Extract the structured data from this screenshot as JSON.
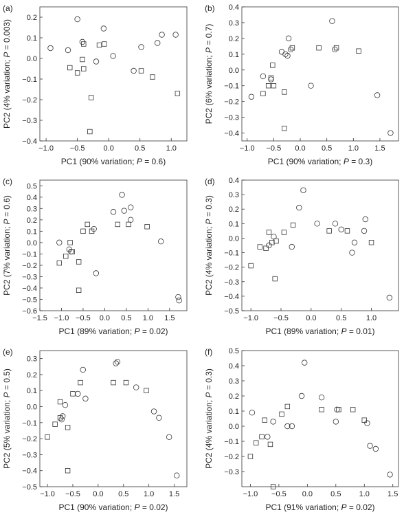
{
  "chart_data": [
    {
      "type": "scatter",
      "panel_label": "(a)",
      "xlabel": "PC1 (90% variation; ",
      "xlabel_p": "P",
      "xlabel_tail": " = 0.6)",
      "ylabel": "PC2 (4% variation; ",
      "ylabel_p": "P",
      "ylabel_tail": " = 0.003)",
      "xlim": [
        -1.1,
        1.25
      ],
      "ylim": [
        -0.4,
        0.25
      ],
      "xticks": [
        -1,
        -0.5,
        0,
        0.5,
        1
      ],
      "xtick_labels": [
        "−1.0",
        "−0.5",
        "0.0",
        "0.5",
        "1.0"
      ],
      "yticks": [
        -0.4,
        -0.3,
        -0.2,
        -0.1,
        0,
        0.1,
        0.2
      ],
      "ytick_labels": [
        "−0.4",
        "−0.3",
        "−0.2",
        "−0.1",
        "0.0",
        "0.1",
        "0.2"
      ],
      "series": [
        {
          "marker": "circle",
          "points": [
            [
              -0.93,
              0.05
            ],
            [
              -0.65,
              0.04
            ],
            [
              -0.5,
              0.19
            ],
            [
              -0.42,
              0.08
            ],
            [
              -0.2,
              -0.015
            ],
            [
              -0.08,
              0.145
            ],
            [
              0.07,
              0.012
            ],
            [
              0.52,
              0.055
            ],
            [
              0.78,
              0.075
            ],
            [
              0.85,
              0.115
            ],
            [
              1.07,
              0.115
            ],
            [
              0.4,
              -0.06
            ]
          ]
        },
        {
          "marker": "square",
          "points": [
            [
              -0.62,
              -0.045
            ],
            [
              -0.5,
              -0.07
            ],
            [
              -0.4,
              0.07
            ],
            [
              -0.4,
              -0.05
            ],
            [
              -0.28,
              -0.19
            ],
            [
              -0.3,
              -0.355
            ],
            [
              -0.15,
              0.065
            ],
            [
              -0.07,
              0.07
            ],
            [
              -0.42,
              -0.005
            ],
            [
              0.52,
              -0.06
            ],
            [
              0.7,
              -0.09
            ],
            [
              1.1,
              -0.17
            ]
          ]
        }
      ]
    },
    {
      "type": "scatter",
      "panel_label": "(b)",
      "xlabel": "PC1 (90% variation; ",
      "xlabel_p": "P",
      "xlabel_tail": " = 0.3)",
      "ylabel": "PC2 (6% variation; ",
      "ylabel_p": "P",
      "ylabel_tail": " = 0.7)",
      "xlim": [
        -1.1,
        1.85
      ],
      "ylim": [
        -0.45,
        0.4
      ],
      "xticks": [
        -1,
        -0.5,
        0,
        0.5,
        1,
        1.5
      ],
      "xtick_labels": [
        "−1.0",
        "−0.5",
        "0.0",
        "0.5",
        "1.0",
        "1.5"
      ],
      "yticks": [
        -0.4,
        -0.3,
        -0.2,
        -0.1,
        0,
        0.1,
        0.2,
        0.3,
        0.4
      ],
      "ytick_labels": [
        "−0.4",
        "−0.3",
        "−0.2",
        "−0.1",
        "0.0",
        "0.1",
        "0.2",
        "0.3",
        "0.4"
      ],
      "series": [
        {
          "marker": "circle",
          "points": [
            [
              -0.92,
              -0.17
            ],
            [
              -0.7,
              -0.04
            ],
            [
              -0.55,
              -0.06
            ],
            [
              -0.35,
              0.115
            ],
            [
              -0.28,
              0.1
            ],
            [
              -0.24,
              0.09
            ],
            [
              -0.22,
              0.2
            ],
            [
              -0.18,
              0.13
            ],
            [
              0.2,
              -0.1
            ],
            [
              0.6,
              0.31
            ],
            [
              0.65,
              0.13
            ],
            [
              1.45,
              -0.16
            ],
            [
              1.7,
              -0.4
            ]
          ]
        },
        {
          "marker": "square",
          "points": [
            [
              -0.7,
              -0.15
            ],
            [
              -0.6,
              -0.1
            ],
            [
              -0.55,
              -0.05
            ],
            [
              -0.52,
              0.03
            ],
            [
              -0.5,
              -0.1
            ],
            [
              -0.3,
              -0.14
            ],
            [
              -0.3,
              -0.37
            ],
            [
              -0.15,
              0.14
            ],
            [
              0.35,
              0.14
            ],
            [
              0.68,
              0.14
            ],
            [
              1.1,
              0.12
            ]
          ]
        }
      ]
    },
    {
      "type": "scatter",
      "panel_label": "(c)",
      "xlabel": "PC1 (89% variation; ",
      "xlabel_p": "P",
      "xlabel_tail": " = 0.02)",
      "ylabel": "PC2 (7% variation; ",
      "ylabel_p": "P",
      "ylabel_tail": " = 0.6)",
      "xlim": [
        -1.5,
        1.9
      ],
      "ylim": [
        -0.6,
        0.55
      ],
      "xticks": [
        -1.5,
        -1,
        -0.5,
        0,
        0.5,
        1,
        1.5
      ],
      "xtick_labels": [
        "−1.5",
        "−1.0",
        "−0.5",
        "0.0",
        "0.5",
        "1.0",
        "1.5"
      ],
      "yticks": [
        -0.6,
        -0.5,
        -0.4,
        -0.3,
        -0.2,
        -0.1,
        0,
        0.1,
        0.2,
        0.3,
        0.4,
        0.5
      ],
      "ytick_labels": [
        "−0.6",
        "−0.5",
        "−0.4",
        "−0.3",
        "−0.2",
        "−0.1",
        "0.0",
        "0.1",
        "0.2",
        "0.3",
        "0.4",
        "0.5"
      ],
      "series": [
        {
          "marker": "circle",
          "points": [
            [
              -1.05,
              0.0
            ],
            [
              -0.82,
              -0.06
            ],
            [
              -0.78,
              -0.08
            ],
            [
              -0.25,
              0.12
            ],
            [
              -0.2,
              -0.27
            ],
            [
              0.2,
              0.27
            ],
            [
              0.4,
              0.42
            ],
            [
              0.45,
              0.28
            ],
            [
              0.6,
              0.31
            ],
            [
              0.6,
              0.2
            ],
            [
              1.3,
              0.01
            ],
            [
              1.7,
              -0.48
            ],
            [
              1.72,
              -0.51
            ]
          ]
        },
        {
          "marker": "square",
          "points": [
            [
              -1.05,
              -0.18
            ],
            [
              -0.9,
              -0.12
            ],
            [
              -0.8,
              0.0
            ],
            [
              -0.75,
              -0.08
            ],
            [
              -0.6,
              -0.17
            ],
            [
              -0.6,
              -0.42
            ],
            [
              -0.5,
              0.1
            ],
            [
              -0.4,
              0.16
            ],
            [
              -0.3,
              0.1
            ],
            [
              0.3,
              0.16
            ],
            [
              0.55,
              0.16
            ],
            [
              0.98,
              0.14
            ]
          ]
        }
      ]
    },
    {
      "type": "scatter",
      "panel_label": "(d)",
      "xlabel": "PC1 (89% variation; ",
      "xlabel_p": "P",
      "xlabel_tail": " = 0.01)",
      "ylabel": "PC2 (4% variation; ",
      "ylabel_p": "P",
      "ylabel_tail": " = 0.3)",
      "xlim": [
        -1.15,
        1.45
      ],
      "ylim": [
        -0.5,
        0.4
      ],
      "xticks": [
        -1,
        -0.5,
        0,
        0.5,
        1
      ],
      "xtick_labels": [
        "−1.0",
        "−0.5",
        "0.0",
        "0.5",
        "1.0"
      ],
      "yticks": [
        -0.5,
        -0.4,
        -0.3,
        -0.2,
        -0.1,
        0,
        0.1,
        0.2,
        0.3,
        0.4
      ],
      "ytick_labels": [
        "−0.5",
        "−0.4",
        "−0.3",
        "−0.2",
        "−0.1",
        "0.0",
        "0.1",
        "0.2",
        "0.3",
        "0.4"
      ],
      "series": [
        {
          "marker": "circle",
          "points": [
            [
              -0.7,
              -0.05
            ],
            [
              -0.62,
              0.01
            ],
            [
              -0.32,
              -0.06
            ],
            [
              -0.2,
              0.21
            ],
            [
              -0.13,
              0.33
            ],
            [
              0.1,
              0.1
            ],
            [
              0.4,
              0.1
            ],
            [
              0.5,
              0.06
            ],
            [
              0.68,
              -0.1
            ],
            [
              0.72,
              -0.03
            ],
            [
              0.9,
              0.13
            ],
            [
              0.88,
              0.05
            ],
            [
              1.3,
              -0.41
            ]
          ]
        },
        {
          "marker": "square",
          "points": [
            [
              -1.0,
              -0.19
            ],
            [
              -0.85,
              -0.06
            ],
            [
              -0.75,
              -0.07
            ],
            [
              -0.7,
              0.04
            ],
            [
              -0.65,
              -0.03
            ],
            [
              -0.6,
              -0.28
            ],
            [
              -0.58,
              -0.02
            ],
            [
              -0.45,
              0.04
            ],
            [
              -0.3,
              0.09
            ],
            [
              0.3,
              0.05
            ],
            [
              0.6,
              0.05
            ],
            [
              1.0,
              -0.03
            ]
          ]
        }
      ]
    },
    {
      "type": "scatter",
      "panel_label": "(e)",
      "xlabel": "PC1 (90% variation; ",
      "xlabel_p": "P",
      "xlabel_tail": " = 0.02)",
      "ylabel": "PC2 (5% variation; ",
      "ylabel_p": "P",
      "ylabel_tail": " = 0.5)",
      "xlim": [
        -1.15,
        1.75
      ],
      "ylim": [
        -0.5,
        0.35
      ],
      "xticks": [
        -1,
        -0.5,
        0,
        0.5,
        1,
        1.5
      ],
      "xtick_labels": [
        "−1.0",
        "−0.5",
        "0.0",
        "0.5",
        "1.0",
        "1.5"
      ],
      "yticks": [
        -0.5,
        -0.4,
        -0.3,
        -0.2,
        -0.1,
        0,
        0.1,
        0.2,
        0.3
      ],
      "ytick_labels": [
        "−0.5",
        "−0.4",
        "−0.3",
        "−0.2",
        "−0.1",
        "0.0",
        "0.1",
        "0.2",
        "0.3"
      ],
      "series": [
        {
          "marker": "circle",
          "points": [
            [
              -0.72,
              -0.08
            ],
            [
              -0.7,
              -0.06
            ],
            [
              -0.65,
              0.01
            ],
            [
              -0.4,
              0.08
            ],
            [
              -0.3,
              0.23
            ],
            [
              -0.25,
              0.05
            ],
            [
              0.35,
              0.27
            ],
            [
              0.38,
              0.28
            ],
            [
              0.75,
              0.12
            ],
            [
              1.1,
              -0.03
            ],
            [
              1.2,
              -0.07
            ],
            [
              1.4,
              -0.19
            ],
            [
              1.55,
              -0.43
            ]
          ]
        },
        {
          "marker": "square",
          "points": [
            [
              -1.0,
              -0.19
            ],
            [
              -0.85,
              -0.11
            ],
            [
              -0.75,
              -0.07
            ],
            [
              -0.75,
              0.03
            ],
            [
              -0.6,
              -0.13
            ],
            [
              -0.6,
              -0.4
            ],
            [
              -0.5,
              0.08
            ],
            [
              -0.35,
              0.15
            ],
            [
              0.3,
              0.15
            ],
            [
              0.55,
              0.15
            ],
            [
              0.95,
              0.1
            ]
          ]
        }
      ]
    },
    {
      "type": "scatter",
      "panel_label": "(f)",
      "xlabel": "PC1 (91% variation; ",
      "xlabel_p": "P",
      "xlabel_tail": " = 0.02)",
      "ylabel": "PC2 (4% variation; ",
      "ylabel_p": "P",
      "ylabel_tail": " = 0.3)",
      "xlim": [
        -1.15,
        1.6
      ],
      "ylim": [
        -0.4,
        0.5
      ],
      "xticks": [
        -1,
        -0.5,
        0,
        0.5,
        1,
        1.5
      ],
      "xtick_labels": [
        "−1.0",
        "−0.5",
        "0.0",
        "0.5",
        "1.0",
        "1.5"
      ],
      "yticks": [
        -0.3,
        -0.2,
        -0.1,
        0,
        0.1,
        0.2,
        0.3,
        0.4,
        0.5
      ],
      "ytick_labels": [
        "−0.3",
        "−0.2",
        "−0.1",
        "0.0",
        "0.1",
        "0.2",
        "0.3",
        "0.4",
        "0.5"
      ],
      "series": [
        {
          "marker": "circle",
          "points": [
            [
              -0.97,
              0.09
            ],
            [
              -0.7,
              -0.07
            ],
            [
              -0.6,
              0.03
            ],
            [
              -0.35,
              0.0
            ],
            [
              -0.27,
              0.0
            ],
            [
              -0.1,
              0.2
            ],
            [
              -0.05,
              0.42
            ],
            [
              0.25,
              0.19
            ],
            [
              0.5,
              0.03
            ],
            [
              0.52,
              0.11
            ],
            [
              1.05,
              0.02
            ],
            [
              1.1,
              -0.13
            ],
            [
              1.2,
              -0.15
            ],
            [
              1.45,
              -0.32
            ]
          ]
        },
        {
          "marker": "square",
          "points": [
            [
              -1.0,
              -0.2
            ],
            [
              -0.9,
              -0.11
            ],
            [
              -0.8,
              -0.07
            ],
            [
              -0.75,
              0.04
            ],
            [
              -0.65,
              -0.12
            ],
            [
              -0.6,
              -0.4
            ],
            [
              -0.45,
              0.08
            ],
            [
              -0.35,
              0.13
            ],
            [
              0.25,
              0.11
            ],
            [
              0.55,
              0.11
            ],
            [
              0.8,
              0.11
            ],
            [
              1.0,
              0.04
            ]
          ]
        }
      ]
    }
  ]
}
